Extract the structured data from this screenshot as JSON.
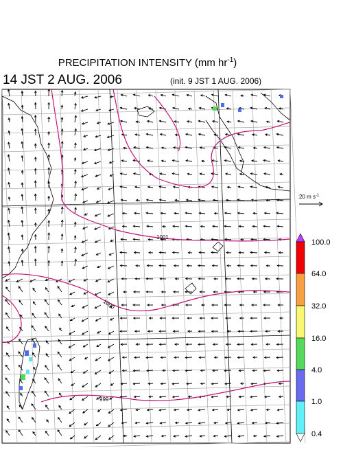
{
  "header": {
    "title": "PRECIPITATION INTENSITY (mm hr",
    "title_exp": "-1",
    "title_close": ")",
    "valid_time": "14 JST 2 AUG. 2006",
    "init_time": "(init. 9 JST 1 AUG. 2006)"
  },
  "reference_vector": {
    "label": "20 m s",
    "exp": "-1"
  },
  "isobars": {
    "labels": [
      "1001",
      "1000",
      "999"
    ]
  },
  "colorbar": {
    "labels": [
      "100.0",
      "64.0",
      "32.0",
      "16.0",
      "4.0",
      "1.0",
      "0.4"
    ]
  }
}
